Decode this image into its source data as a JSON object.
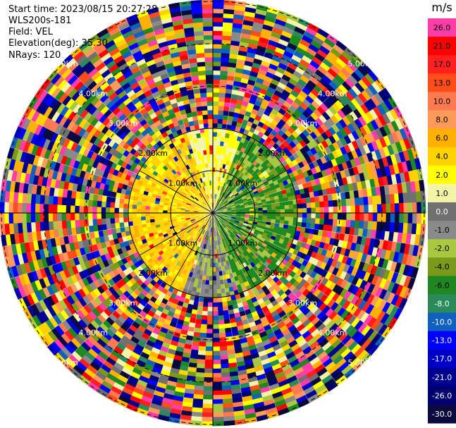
{
  "info": {
    "start_time": "Start time: 2023/08/15 20:27:28",
    "instrument": "WLS200s-181",
    "field": "Field: VEL",
    "elevation": "Elevation(deg): 35.30",
    "nrays": "NRays: 120"
  },
  "colorbar": {
    "unit": "m/s",
    "ticks": [
      "26.0",
      "21.0",
      "17.0",
      "13.0",
      "10.0",
      "8.0",
      "6.0",
      "4.0",
      "2.0",
      "1.0",
      "0.0",
      "-1.0",
      "-2.0",
      "-4.0",
      "-6.0",
      "-8.0",
      "-10.0",
      "-13.0",
      "-17.0",
      "-21.0",
      "-26.0",
      "-30.0"
    ],
    "colors": [
      "#ff3da8",
      "#ff0000",
      "#ff1f1f",
      "#ff4d1a",
      "#ff7a50",
      "#ff9a5a",
      "#ffb000",
      "#ffd200",
      "#ffff00",
      "#f4f4a8",
      "#707070",
      "#8a8a8a",
      "#a8c840",
      "#7a9a1a",
      "#208820",
      "#2a8a5a",
      "#1060c0",
      "#0000ff",
      "#0000c8",
      "#000090",
      "#000070",
      "#0a0a40"
    ]
  },
  "rings": [
    {
      "label": "1.00km",
      "index": 1
    },
    {
      "label": "2.00km",
      "index": 2
    },
    {
      "label": "3.00km",
      "index": 3
    },
    {
      "label": "4.00km",
      "index": 4
    },
    {
      "label": "5.00km",
      "index": 5
    }
  ]
}
